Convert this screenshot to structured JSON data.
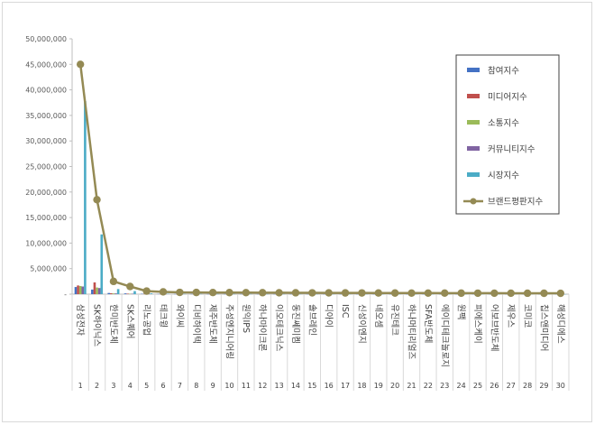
{
  "chart_data": {
    "type": "bar",
    "title": "",
    "xlabel": "",
    "ylabel": "",
    "ylim": [
      0,
      50000000
    ],
    "yticks": [
      0,
      5000000,
      10000000,
      15000000,
      20000000,
      25000000,
      30000000,
      35000000,
      40000000,
      45000000,
      50000000
    ],
    "ytick_labels": [
      "-",
      "5,000,000",
      "10,000,000",
      "15,000,000",
      "20,000,000",
      "25,000,000",
      "30,000,000",
      "35,000,000",
      "40,000,000",
      "45,000,000",
      "50,000,000"
    ],
    "grid": false,
    "legend_position": "right",
    "categories": [
      "삼성전자",
      "SK하이닉스",
      "한미반도체",
      "SK스퀘어",
      "리노공업",
      "테크윙",
      "와이씨",
      "디비하이텍",
      "제주반도체",
      "주성엔지니어링",
      "원익IPS",
      "하나마이크론",
      "이오테크닉스",
      "동진쎄미켐",
      "솔브레인",
      "디아이",
      "ISC",
      "신성이엔지",
      "네오셈",
      "유진테크",
      "하나머티리얼즈",
      "SFA반도체",
      "에이디테크놀로지",
      "원팩",
      "피에스케이",
      "어보브반도체",
      "제우스",
      "코미코",
      "칩스앤미디어",
      "해성디에스"
    ],
    "index_labels": [
      "1",
      "2",
      "3",
      "4",
      "5",
      "6",
      "7",
      "8",
      "9",
      "10",
      "11",
      "12",
      "13",
      "14",
      "15",
      "16",
      "17",
      "18",
      "19",
      "20",
      "21",
      "22",
      "23",
      "24",
      "25",
      "26",
      "27",
      "28",
      "29",
      "30"
    ],
    "series": [
      {
        "name": "참여지수",
        "kind": "bar",
        "color": "#4472c4",
        "values": [
          1400000,
          900000,
          230000,
          150000,
          70000,
          40000,
          30000,
          30000,
          25000,
          25000,
          25000,
          20000,
          20000,
          20000,
          18000,
          15000,
          15000,
          15000,
          12000,
          12000,
          12000,
          10000,
          10000,
          10000,
          10000,
          8000,
          8000,
          8000,
          8000,
          6000
        ]
      },
      {
        "name": "미디어지수",
        "kind": "bar",
        "color": "#c0504d",
        "values": [
          1700000,
          2300000,
          180000,
          100000,
          40000,
          30000,
          20000,
          20000,
          15000,
          15000,
          15000,
          12000,
          12000,
          12000,
          10000,
          10000,
          10000,
          10000,
          8000,
          8000,
          8000,
          6000,
          6000,
          6000,
          6000,
          5000,
          5000,
          5000,
          5000,
          4000
        ]
      },
      {
        "name": "소통지수",
        "kind": "bar",
        "color": "#9bbb59",
        "values": [
          1600000,
          1300000,
          150000,
          80000,
          40000,
          25000,
          20000,
          20000,
          15000,
          15000,
          15000,
          12000,
          12000,
          12000,
          10000,
          10000,
          10000,
          10000,
          8000,
          8000,
          8000,
          6000,
          6000,
          6000,
          6000,
          5000,
          5000,
          5000,
          5000,
          4000
        ]
      },
      {
        "name": "커뮤니티지수",
        "kind": "bar",
        "color": "#8064a2",
        "values": [
          1500000,
          1200000,
          150000,
          90000,
          40000,
          25000,
          20000,
          20000,
          15000,
          15000,
          15000,
          12000,
          12000,
          12000,
          10000,
          10000,
          10000,
          10000,
          8000,
          8000,
          8000,
          6000,
          6000,
          6000,
          6000,
          5000,
          5000,
          5000,
          5000,
          4000
        ]
      },
      {
        "name": "시장지수",
        "kind": "bar",
        "color": "#4bacc6",
        "values": [
          37800000,
          11700000,
          1000000,
          600000,
          150000,
          60000,
          40000,
          40000,
          30000,
          30000,
          30000,
          25000,
          25000,
          25000,
          20000,
          20000,
          20000,
          20000,
          15000,
          15000,
          15000,
          12000,
          12000,
          12000,
          12000,
          10000,
          10000,
          10000,
          10000,
          8000
        ]
      },
      {
        "name": "브랜드평판지수",
        "kind": "line",
        "color": "#948a54",
        "values": [
          45000000,
          18500000,
          2500000,
          1500000,
          600000,
          450000,
          350000,
          330000,
          320000,
          310000,
          300000,
          290000,
          280000,
          270000,
          260000,
          250000,
          245000,
          240000,
          230000,
          220000,
          215000,
          210000,
          205000,
          200000,
          195000,
          190000,
          185000,
          180000,
          175000,
          170000
        ]
      }
    ]
  }
}
